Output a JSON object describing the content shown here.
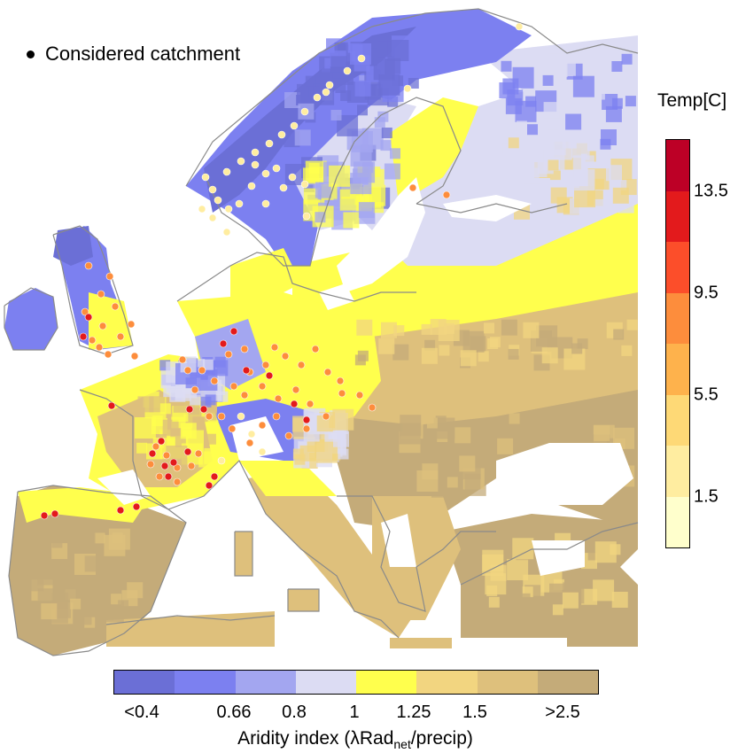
{
  "legend": {
    "catchment_label": "Considered catchment"
  },
  "temperature_scale": {
    "title": "Temp[C]",
    "tick_labels": [
      "1.5",
      "5.5",
      "9.5",
      "13.5"
    ],
    "colors": [
      "#ffffcc",
      "#ffeda0",
      "#fed976",
      "#feb24c",
      "#fd8d3c",
      "#fc4e2a",
      "#e31a1c",
      "#bd0026"
    ]
  },
  "aridity_scale": {
    "title_prefix": "Aridity index (",
    "title_lambda": "λRad",
    "title_sub": "net",
    "title_suffix": "/precip)",
    "tick_labels": [
      "<0.4",
      "0.66",
      "0.8",
      "1",
      "1.25",
      "1.5",
      ">2.5"
    ],
    "colors": [
      "#6b6fd6",
      "#7c80f0",
      "#a3a6f0",
      "#dcdcf3",
      "#ffff4d",
      "#f2d580",
      "#dec07c",
      "#c4ab79"
    ]
  },
  "map": {
    "sea_color": "#ffffff",
    "coastline_color": "#888888",
    "catchment_color_classes": [
      "cool",
      "warm",
      "hot"
    ]
  }
}
